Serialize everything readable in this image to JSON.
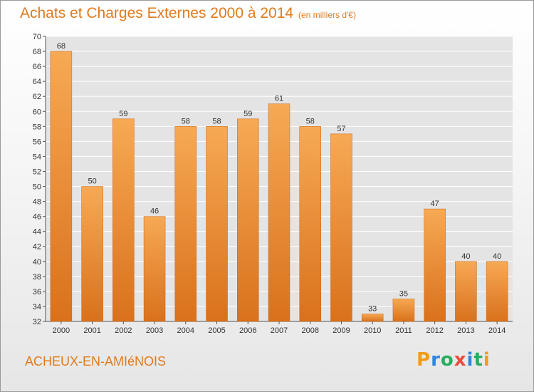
{
  "title": "Achats et Charges Externes 2000 à 2014",
  "unit_note": "(en milliers d'€)",
  "commune": "ACHEUX-EN-AMIéNOIS",
  "logo": {
    "text": "Proxiti",
    "letter_colors": [
      "#f39c12",
      "#2e86de",
      "#27ae60",
      "#e74c3c",
      "#2e86de",
      "#27ae60",
      "#f39c12"
    ]
  },
  "colors": {
    "bar_light": "#f7a954",
    "bar_dark": "#d9711c",
    "grid": "#ffffff",
    "plot_bg": "#e4e4e4",
    "accent": "#e07a1c"
  },
  "chart_data": {
    "type": "bar",
    "title": "Achats et Charges Externes 2000 à 2014",
    "xlabel": "",
    "ylabel": "",
    "categories": [
      "2000",
      "2001",
      "2002",
      "2003",
      "2004",
      "2005",
      "2006",
      "2007",
      "2008",
      "2009",
      "2010",
      "2011",
      "2012",
      "2013",
      "2014"
    ],
    "values": [
      68,
      50,
      59,
      46,
      58,
      58,
      59,
      61,
      58,
      57,
      33,
      35,
      47,
      40,
      40
    ],
    "ylim": [
      32,
      70
    ],
    "yticks": [
      32,
      34,
      36,
      38,
      40,
      42,
      44,
      46,
      48,
      50,
      52,
      54,
      56,
      58,
      60,
      62,
      64,
      66,
      68,
      70
    ],
    "grid": true,
    "legend": "none"
  }
}
